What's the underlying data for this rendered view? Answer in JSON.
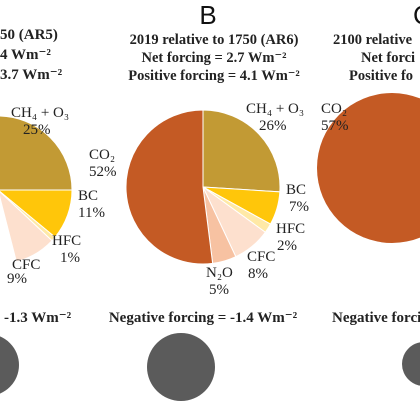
{
  "colors": {
    "co2": "#C45A24",
    "ch4_o3": "#C29A34",
    "bc": "#FFC60A",
    "hfc": "#FFE9A6",
    "cfc": "#FDE0CE",
    "n2o": "#F7C2A2",
    "negative": "#5B5B5B",
    "text": "#222222"
  },
  "left_partial": {
    "header_line1": "50 (AR5)",
    "header_line2": "4 Wm⁻²",
    "header_line3": "3.7 Wm⁻²",
    "ch4_label": "CH₄ + O₃",
    "ch4_value": "25%",
    "bc_label": "BC",
    "bc_value": "11%",
    "hfc_label": "HFC",
    "hfc_value": "1%",
    "cfc_label": "CFC",
    "cfc_value": "9%",
    "negative_text": "-1.3 Wm⁻²"
  },
  "right_partial": {
    "panel_letter": "C",
    "header_line1": "2100 relative",
    "header_line2": "Net forci",
    "header_line3": "Positive fo",
    "co2_label": "CO₂",
    "co2_value": "57%",
    "negative_text": "Negative forcing"
  },
  "chart_data": [
    {
      "type": "pie",
      "panel": "A (partial)",
      "title": "",
      "slices": [
        {
          "label": "CH₄ + O₃",
          "value": 25
        },
        {
          "label": "BC",
          "value": 11
        },
        {
          "label": "HFC",
          "value": 1
        },
        {
          "label": "CFC",
          "value": 9
        }
      ],
      "negative_forcing": "-1.3 Wm⁻²"
    },
    {
      "type": "pie",
      "panel": "B",
      "title": "2019 relative to 1750 (AR6)",
      "subtitle_1": "Net forcing = 2.7 Wm⁻²",
      "subtitle_2": "Positive forcing = 4.1 Wm⁻²",
      "slices": [
        {
          "name": "co2",
          "label": "CO₂",
          "value": 52
        },
        {
          "name": "ch4_o3",
          "label": "CH₄ + O₃",
          "value": 26
        },
        {
          "name": "bc",
          "label": "BC",
          "value": 7
        },
        {
          "name": "hfc",
          "label": "HFC",
          "value": 2
        },
        {
          "name": "cfc",
          "label": "CFC",
          "value": 8
        },
        {
          "name": "n2o",
          "label": "N₂O",
          "value": 5
        }
      ],
      "negative_forcing": "Negative forcing = -1.4 Wm⁻²"
    },
    {
      "type": "pie",
      "panel": "C (partial)",
      "title": "",
      "slices": [
        {
          "label": "CO₂",
          "value": 57
        }
      ]
    }
  ]
}
